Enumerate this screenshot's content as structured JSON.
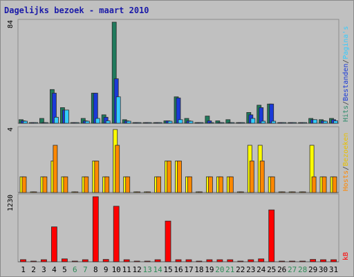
{
  "chart_data": {
    "type": "bar",
    "title": "Dagelijks bezoek - maart 2010",
    "days": [
      "1",
      "2",
      "3",
      "4",
      "5",
      "6",
      "7",
      "8",
      "9",
      "10",
      "11",
      "12",
      "13",
      "14",
      "15",
      "16",
      "17",
      "18",
      "19",
      "20",
      "21",
      "22",
      "23",
      "24",
      "25",
      "26",
      "27",
      "28",
      "29",
      "30",
      "31"
    ],
    "weekend_days": [
      "6",
      "7",
      "13",
      "14",
      "20",
      "21",
      "27",
      "28"
    ],
    "panels": [
      {
        "id": "top",
        "scale_label": "84",
        "ymax": 84,
        "legend": [
          {
            "text": "Hits",
            "color": "#2e8b6b"
          },
          {
            "text": "/",
            "color": "#404040"
          },
          {
            "text": "Bestanden",
            "color": "#1a3ad8"
          },
          {
            "text": "/",
            "color": "#404040"
          },
          {
            "text": "Pagina's",
            "color": "#33ccff"
          }
        ],
        "series": [
          {
            "key": "hits",
            "color": "#1f7a5c",
            "values": [
              3,
              0,
              4,
              28,
              13,
              0,
              4,
              25,
              7,
              84,
              3,
              0,
              0,
              0,
              2,
              22,
              4,
              0,
              6,
              2,
              3,
              0,
              9,
              15,
              16,
              0,
              0,
              0,
              4,
              3,
              4
            ]
          },
          {
            "key": "bestanden",
            "color": "#1a3ad8",
            "values": [
              2,
              0,
              0,
              25,
              11,
              0,
              2,
              25,
              5,
              37,
              2,
              0,
              0,
              0,
              2,
              21,
              2,
              0,
              2,
              0,
              0,
              0,
              7,
              13,
              16,
              0,
              0,
              0,
              3,
              2,
              3
            ]
          },
          {
            "key": "paginas",
            "color": "#33ccff",
            "values": [
              1,
              0,
              0,
              5,
              11,
              0,
              1,
              4,
              2,
              22,
              1,
              0,
              0,
              0,
              1,
              3,
              1,
              0,
              0,
              0,
              0,
              0,
              4,
              1,
              1,
              0,
              0,
              0,
              3,
              1,
              2
            ]
          }
        ]
      },
      {
        "id": "middle",
        "scale_label": "4",
        "ymax": 4,
        "legend": [
          {
            "text": "Hosts",
            "color": "#ff8800"
          },
          {
            "text": "/",
            "color": "#404040"
          },
          {
            "text": "Bezoeken",
            "color": "#e8c000"
          }
        ],
        "series": [
          {
            "key": "bezoeken",
            "color": "#ffff00",
            "values": [
              1,
              0,
              1,
              2,
              1,
              0,
              1,
              2,
              1,
              4,
              1,
              0,
              0,
              1,
              2,
              2,
              1,
              0,
              1,
              1,
              1,
              0,
              3,
              3,
              1,
              0,
              0,
              0,
              3,
              1,
              1
            ]
          },
          {
            "key": "hosts",
            "color": "#ff8800",
            "values": [
              1,
              0,
              1,
              3,
              1,
              0,
              1,
              2,
              1,
              3,
              1,
              0,
              0,
              1,
              2,
              2,
              1,
              0,
              1,
              1,
              1,
              0,
              2,
              2,
              1,
              0,
              0,
              0,
              1,
              1,
              1
            ]
          }
        ]
      },
      {
        "id": "bottom",
        "scale_label": "1230",
        "ymax": 1230,
        "legend": [
          {
            "text": "kB",
            "color": "#ff0000"
          }
        ],
        "series": [
          {
            "key": "kb",
            "color": "#ff0000",
            "values": [
              40,
              0,
              5,
              660,
              55,
              0,
              10,
              1230,
              45,
              1050,
              10,
              0,
              0,
              5,
              770,
              35,
              5,
              0,
              5,
              8,
              7,
              0,
              15,
              55,
              980,
              0,
              0,
              0,
              45,
              15,
              15
            ]
          }
        ]
      }
    ],
    "colors": {
      "weekday_text": "#000000",
      "weekend_text": "#2e8b57",
      "title_text": "#1a1aa8",
      "panel_bg": "#c0c0c0",
      "gridline": "#a8a8a8",
      "bar_outline": "#2a2a2a"
    }
  }
}
